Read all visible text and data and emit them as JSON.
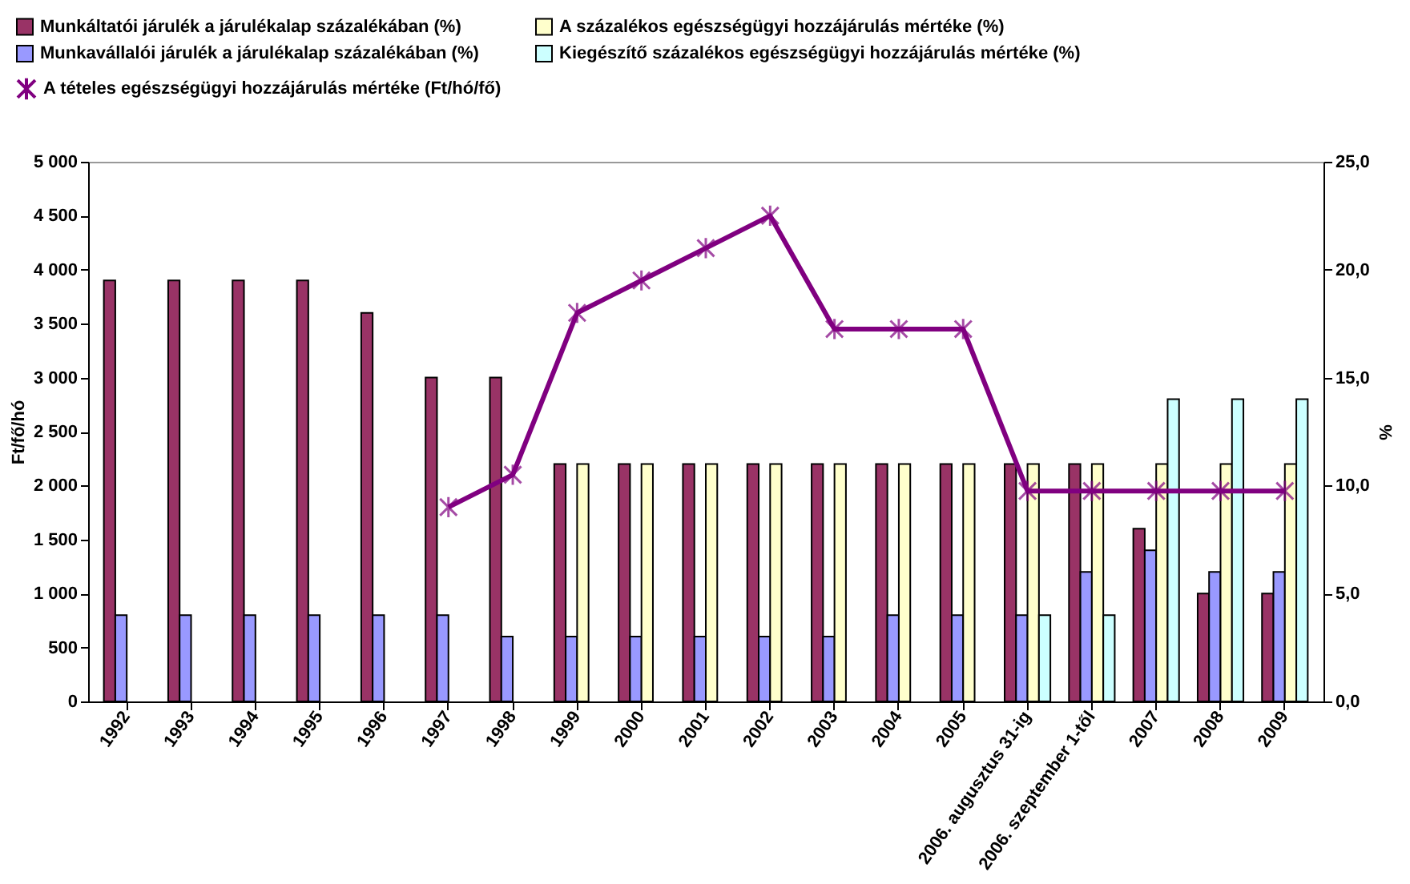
{
  "chart_data": {
    "type": "bar",
    "categories": [
      "1992",
      "1993",
      "1994",
      "1995",
      "1996",
      "1997",
      "1998",
      "1999",
      "2000",
      "2001",
      "2002",
      "2003",
      "2004",
      "2005",
      "2006. augusztus 31-ig",
      "2006. szeptember 1-től",
      "2007",
      "2008",
      "2009"
    ],
    "ylabel": "Ft/fő/hó",
    "y2label": "%",
    "ylim": [
      0,
      5000
    ],
    "yticks": [
      {
        "value": 0,
        "label": "0"
      },
      {
        "value": 500,
        "label": "500"
      },
      {
        "value": 1000,
        "label": "1 000"
      },
      {
        "value": 1500,
        "label": "1 500"
      },
      {
        "value": 2000,
        "label": "2 000"
      },
      {
        "value": 2500,
        "label": "2 500"
      },
      {
        "value": 3000,
        "label": "3 000"
      },
      {
        "value": 3500,
        "label": "3 500"
      },
      {
        "value": 4000,
        "label": "4 000"
      },
      {
        "value": 4500,
        "label": "4 500"
      },
      {
        "value": 5000,
        "label": "5 000"
      }
    ],
    "y2lim": [
      0,
      25
    ],
    "y2ticks": [
      {
        "value": 0,
        "label": "0,0"
      },
      {
        "value": 5,
        "label": "5,0"
      },
      {
        "value": 10,
        "label": "10,0"
      },
      {
        "value": 15,
        "label": "15,0"
      },
      {
        "value": 20,
        "label": "20,0"
      },
      {
        "value": 25,
        "label": "25,0"
      }
    ],
    "grid": false,
    "legend": "top",
    "series": [
      {
        "name": "Munkáltatói járulék a járulékalap százalékában  (%)",
        "color": "#993366",
        "axis": "y2",
        "values": [
          19.5,
          19.5,
          19.5,
          19.5,
          18,
          15,
          15,
          11,
          11,
          11,
          11,
          11,
          11,
          11,
          11,
          11,
          8,
          5,
          5
        ]
      },
      {
        "name": "Munkavállalói járulék a járulékalap százalékában  (%)",
        "color": "#9999ff",
        "axis": "y2",
        "values": [
          4,
          4,
          4,
          4,
          4,
          4,
          3,
          3,
          3,
          3,
          3,
          3,
          4,
          4,
          4,
          6,
          7,
          6,
          6
        ]
      },
      {
        "name": "A százalékos egészségügyi hozzájárulás mértéke  (%)",
        "color": "#ffffcc",
        "axis": "y2",
        "values": [
          null,
          null,
          null,
          null,
          null,
          null,
          null,
          11,
          11,
          11,
          11,
          11,
          11,
          11,
          11,
          11,
          11,
          11,
          11
        ]
      },
      {
        "name": "Kiegészítő százalékos egészségügyi hozzájárulás mértéke  (%)",
        "color": "#ccffff",
        "axis": "y2",
        "values": [
          null,
          null,
          null,
          null,
          null,
          null,
          null,
          null,
          null,
          null,
          null,
          null,
          null,
          null,
          4,
          4,
          14,
          14,
          14
        ]
      },
      {
        "name": "A tételes egészségügyi hozzájárulás mértéke (Ft/hó/fő)",
        "color": "#800080",
        "type": "line",
        "axis": "y",
        "marker": "cross",
        "values": [
          null,
          null,
          null,
          null,
          null,
          1800,
          2100,
          3600,
          3900,
          4200,
          4500,
          3450,
          3450,
          3450,
          1950,
          1950,
          1950,
          1950,
          1950
        ]
      }
    ]
  }
}
